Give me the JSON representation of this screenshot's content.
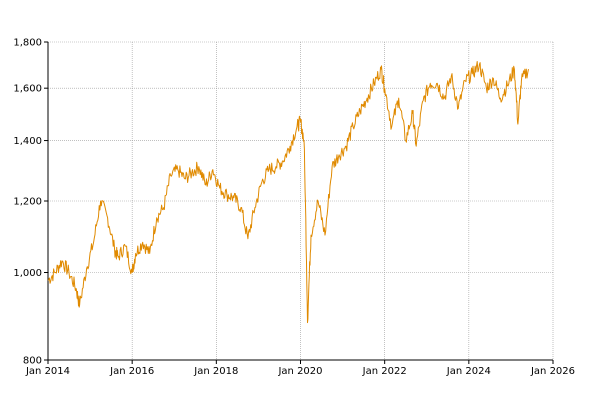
{
  "chart_data": {
    "type": "line",
    "title": "",
    "xlabel": "",
    "ylabel": "",
    "y_scale": "log",
    "ylim": [
      800,
      1800
    ],
    "xlim": [
      "2014-01",
      "2026-01"
    ],
    "grid": true,
    "legend": "none",
    "y_ticks": [
      800,
      1000,
      1200,
      1400,
      1600,
      1800
    ],
    "y_tick_labels": [
      "800",
      "1,000",
      "1,200",
      "1,400",
      "1,600",
      "1,800"
    ],
    "x_ticks": [
      "2014-01",
      "2016-01",
      "2018-01",
      "2020-01",
      "2022-01",
      "2024-01",
      "2026-01"
    ],
    "x_tick_labels": [
      "Jan 2014",
      "Jan 2016",
      "Jan 2018",
      "Jan 2020",
      "Jan 2022",
      "Jan 2024",
      "Jan 2026"
    ],
    "series": [
      {
        "color": "#e08a00",
        "x": [
          "2014-01",
          "2014-03",
          "2014-05",
          "2014-07",
          "2014-09",
          "2014-10",
          "2014-12",
          "2015-02",
          "2015-04",
          "2015-06",
          "2015-08",
          "2015-09",
          "2015-11",
          "2016-01",
          "2016-02",
          "2016-04",
          "2016-06",
          "2016-08",
          "2016-10",
          "2016-12",
          "2017-02",
          "2017-04",
          "2017-06",
          "2017-08",
          "2017-10",
          "2017-12",
          "2018-02",
          "2018-04",
          "2018-06",
          "2018-08",
          "2018-10",
          "2018-12",
          "2019-02",
          "2019-04",
          "2019-06",
          "2019-08",
          "2019-10",
          "2019-12",
          "2020-01",
          "2020-02",
          "2020-03",
          "2020-04",
          "2020-06",
          "2020-08",
          "2020-10",
          "2020-12",
          "2021-02",
          "2021-04",
          "2021-06",
          "2021-08",
          "2021-10",
          "2021-12",
          "2022-01",
          "2022-03",
          "2022-05",
          "2022-07",
          "2022-09",
          "2022-10",
          "2022-12",
          "2023-02",
          "2023-04",
          "2023-06",
          "2023-08",
          "2023-10",
          "2023-12",
          "2024-02",
          "2024-04",
          "2024-06",
          "2024-08",
          "2024-10",
          "2024-12",
          "2025-02",
          "2025-03",
          "2025-04",
          "2025-06"
        ],
        "y": [
          980,
          1000,
          1030,
          1000,
          960,
          920,
          1010,
          1080,
          1200,
          1150,
          1060,
          1040,
          1070,
          1000,
          1050,
          1080,
          1050,
          1150,
          1180,
          1280,
          1300,
          1270,
          1290,
          1310,
          1250,
          1300,
          1240,
          1220,
          1210,
          1180,
          1090,
          1180,
          1260,
          1300,
          1310,
          1330,
          1380,
          1450,
          1470,
          1400,
          880,
          1100,
          1200,
          1100,
          1310,
          1350,
          1380,
          1450,
          1510,
          1560,
          1620,
          1680,
          1600,
          1450,
          1560,
          1400,
          1500,
          1380,
          1550,
          1620,
          1620,
          1560,
          1650,
          1520,
          1630,
          1660,
          1700,
          1600,
          1640,
          1560,
          1610,
          1680,
          1460,
          1630,
          1680
        ]
      }
    ]
  }
}
